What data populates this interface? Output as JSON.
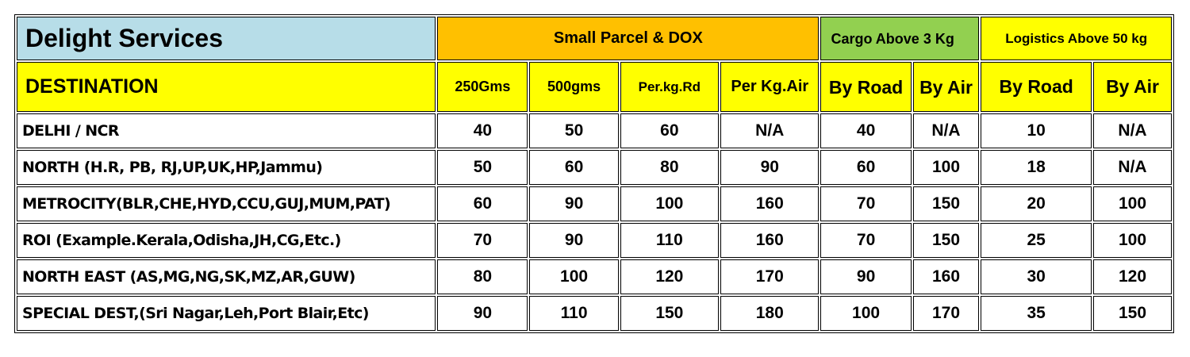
{
  "header": {
    "company": "Delight Services",
    "groups": [
      "Small Parcel & DOX",
      "Cargo Above 3 Kg",
      "Logistics Above 50 kg"
    ],
    "destination_label": "DESTINATION",
    "sub": [
      "250Gms",
      "500gms",
      "Per.kg.Rd",
      "Per Kg.Air",
      "By Road",
      "By Air",
      "By Road",
      "By Air"
    ]
  },
  "rows": [
    {
      "dest": "DELHI / NCR",
      "vals": [
        "40",
        "50",
        "60",
        "N/A",
        "40",
        "N/A",
        "10",
        "N/A"
      ]
    },
    {
      "dest": "NORTH (H.R, PB, RJ,UP,UK,HP,Jammu)",
      "vals": [
        "50",
        "60",
        "80",
        "90",
        "60",
        "100",
        "18",
        "N/A"
      ]
    },
    {
      "dest": "METROCITY(BLR,CHE,HYD,CCU,GUJ,MUM,PAT)",
      "vals": [
        "60",
        "90",
        "100",
        "160",
        "70",
        "150",
        "20",
        "100"
      ]
    },
    {
      "dest": "ROI (Example.Kerala,Odisha,JH,CG,Etc.)",
      "vals": [
        "70",
        "90",
        "110",
        "160",
        "70",
        "150",
        "25",
        "100"
      ]
    },
    {
      "dest": "NORTH EAST (AS,MG,NG,SK,MZ,AR,GUW)",
      "vals": [
        "80",
        "100",
        "120",
        "170",
        "90",
        "160",
        "30",
        "120"
      ]
    },
    {
      "dest": "SPECIAL DEST,(Sri Nagar,Leh,Port Blair,Etc)",
      "vals": [
        "90",
        "110",
        "150",
        "180",
        "100",
        "170",
        "35",
        "150"
      ]
    }
  ],
  "colors": {
    "company_bg": "#b7dde8",
    "small_parcel_bg": "#ffc000",
    "cargo_bg": "#92d050",
    "header_yellow": "#ffff00",
    "border": "#000000"
  }
}
